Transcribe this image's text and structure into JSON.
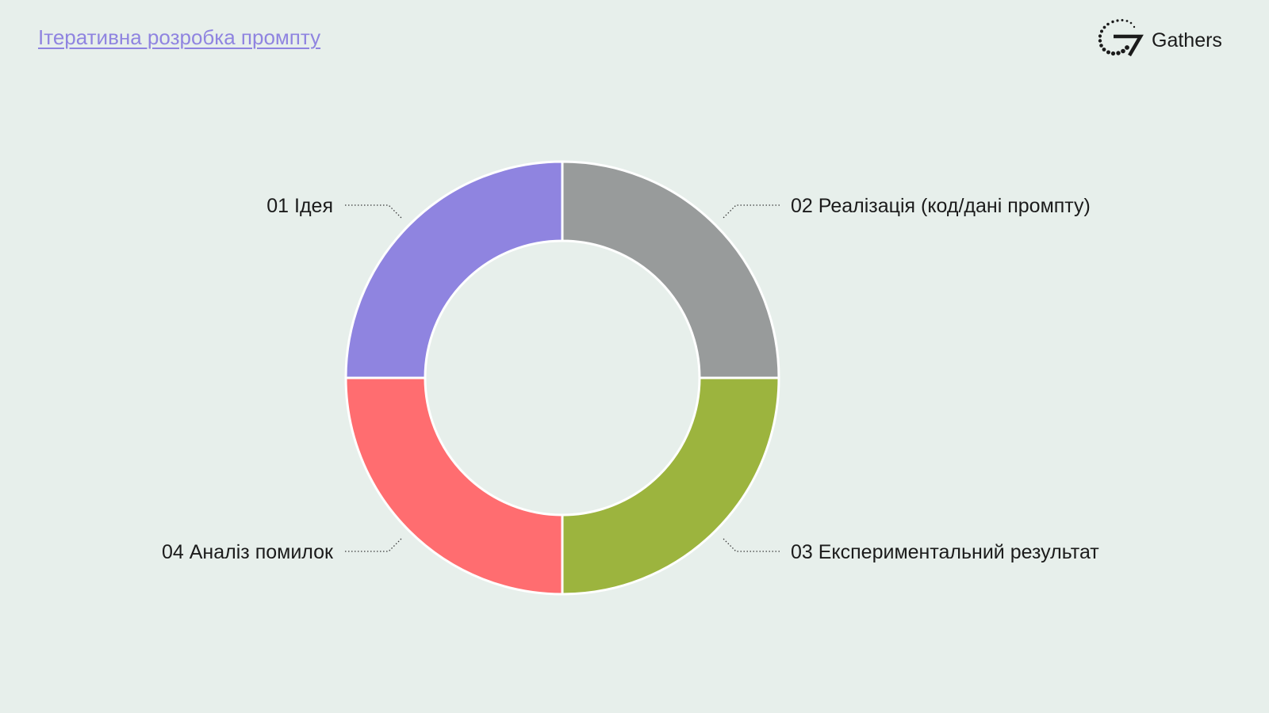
{
  "header": {
    "title": "Ітеративна розробка промпту",
    "brand_name": "Gathers",
    "brand_logo_icon": "gathers-logo-icon"
  },
  "diagram": {
    "type": "donut-cycle",
    "background": "#e7efeb",
    "segments": [
      {
        "label": "01 Ідея",
        "color": "#8f84e0"
      },
      {
        "label": "02 Реалізація (код/дані промпту)",
        "color": "#989b9b"
      },
      {
        "label": "03 Експериментальний результат",
        "color": "#9cb43e"
      },
      {
        "label": "04 Аналіз помилок",
        "color": "#ff6d70"
      }
    ]
  }
}
